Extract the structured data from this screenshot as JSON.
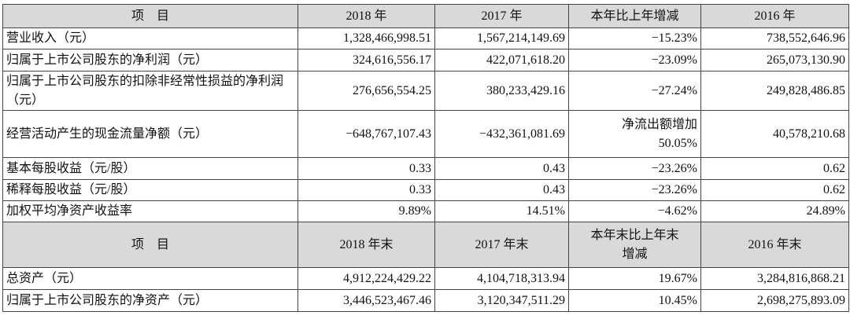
{
  "table": {
    "sections": [
      {
        "header": [
          "项　目",
          "2018 年",
          "2017 年",
          "本年比上年增减",
          "2016 年"
        ],
        "rows": [
          [
            "营业收入（元）",
            "1,328,466,998.51",
            "1,567,214,149.69",
            "−15.23%",
            "738,552,646.96"
          ],
          [
            "归属于上市公司股东的净利润（元）",
            "324,616,556.17",
            "422,071,618.20",
            "−23.09%",
            "265,073,130.90"
          ],
          [
            "归属于上市公司股东的扣除非经常性损益的净利润（元）",
            "276,656,554.25",
            "380,233,429.16",
            "−27.24%",
            "249,828,486.85"
          ],
          [
            "经营活动产生的现金流量净额（元）",
            "−648,767,107.43",
            "−432,361,081.69",
            "净流出额增加\n50.05%",
            "40,578,210.68"
          ],
          [
            "基本每股收益（元/股）",
            "0.33",
            "0.43",
            "−23.26%",
            "0.62"
          ],
          [
            "稀释每股收益（元/股）",
            "0.33",
            "0.43",
            "−23.26%",
            "0.62"
          ],
          [
            "加权平均净资产收益率",
            "9.89%",
            "14.51%",
            "−4.62%",
            "24.89%"
          ]
        ]
      },
      {
        "header": [
          "项　目",
          "2018 年末",
          "2017 年末",
          "本年末比上年末\n增减",
          "2016 年末"
        ],
        "rows": [
          [
            "总资产（元）",
            "4,912,224,429.22",
            "4,104,718,313.94",
            "19.67%",
            "3,284,816,868.21"
          ],
          [
            "归属于上市公司股东的净资产（元）",
            "3,446,523,467.46",
            "3,120,347,511.29",
            "10.45%",
            "2,698,275,893.09"
          ]
        ]
      }
    ]
  }
}
